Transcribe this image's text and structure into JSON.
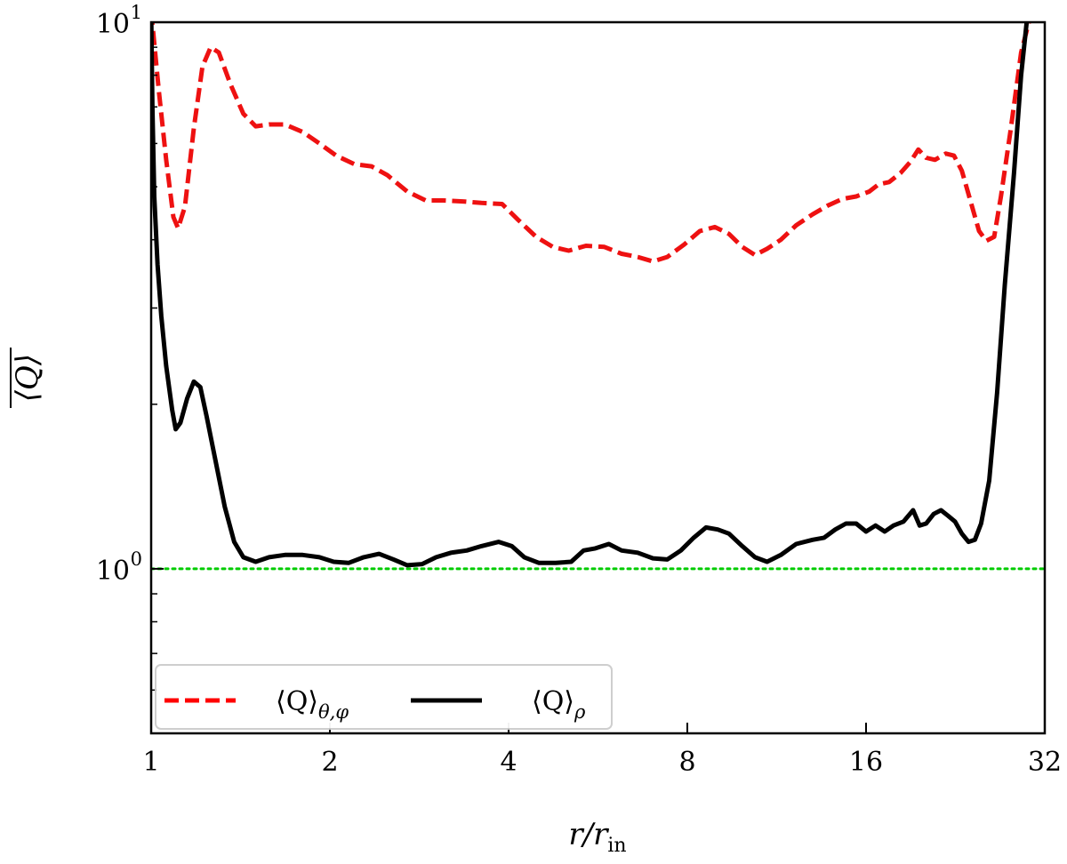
{
  "chart_data": {
    "type": "line",
    "xlabel": "r/r_in",
    "ylabel": "⟨Q⟩ (time-averaged)",
    "xscale": "log2",
    "yscale": "log10",
    "xlim": [
      1,
      32
    ],
    "ylim": [
      0.5,
      10
    ],
    "x_ticks": [
      1,
      2,
      4,
      8,
      16,
      32
    ],
    "x_tick_labels": [
      "1",
      "2",
      "4",
      "8",
      "16",
      "32"
    ],
    "y_ticks": [
      1,
      10
    ],
    "y_tick_labels": [
      {
        "base": "10",
        "exp": "0"
      },
      {
        "base": "10",
        "exp": "1"
      }
    ],
    "y_minor_ticks": [
      0.5,
      0.6,
      0.7,
      0.8,
      0.9,
      2,
      3,
      4,
      5,
      6,
      7,
      8,
      9
    ],
    "legend": {
      "placement": "bottom-left",
      "entries": [
        {
          "label_main": "⟨Q⟩",
          "label_sub": "θ,φ",
          "style": "dashed",
          "color": "#ff0000"
        },
        {
          "label_main": "⟨Q⟩",
          "label_sub": "ρ",
          "style": "solid",
          "color": "#000000"
        }
      ]
    },
    "reference_line": {
      "y": 1.0,
      "color": "#00cc00",
      "style": "dotted"
    },
    "series": [
      {
        "color": "#ee1111",
        "style": "dashed",
        "points": [
          [
            1.0,
            10.5
          ],
          [
            1.03,
            7.5
          ],
          [
            1.06,
            5.6
          ],
          [
            1.09,
            4.4
          ],
          [
            1.11,
            4.2
          ],
          [
            1.14,
            4.6
          ],
          [
            1.18,
            6.4
          ],
          [
            1.22,
            8.3
          ],
          [
            1.26,
            9.0
          ],
          [
            1.3,
            8.8
          ],
          [
            1.36,
            7.7
          ],
          [
            1.43,
            6.8
          ],
          [
            1.5,
            6.45
          ],
          [
            1.58,
            6.5
          ],
          [
            1.68,
            6.5
          ],
          [
            1.8,
            6.3
          ],
          [
            1.92,
            6.0
          ],
          [
            2.05,
            5.7
          ],
          [
            2.2,
            5.5
          ],
          [
            2.35,
            5.45
          ],
          [
            2.5,
            5.25
          ],
          [
            2.7,
            4.9
          ],
          [
            2.9,
            4.72
          ],
          [
            3.1,
            4.72
          ],
          [
            3.35,
            4.7
          ],
          [
            3.6,
            4.67
          ],
          [
            3.9,
            4.65
          ],
          [
            4.15,
            4.35
          ],
          [
            4.45,
            4.05
          ],
          [
            4.75,
            3.88
          ],
          [
            5.05,
            3.82
          ],
          [
            5.4,
            3.9
          ],
          [
            5.8,
            3.88
          ],
          [
            6.2,
            3.77
          ],
          [
            6.6,
            3.72
          ],
          [
            7.0,
            3.65
          ],
          [
            7.4,
            3.72
          ],
          [
            7.9,
            3.92
          ],
          [
            8.4,
            4.15
          ],
          [
            8.9,
            4.22
          ],
          [
            9.4,
            4.1
          ],
          [
            9.9,
            3.88
          ],
          [
            10.4,
            3.75
          ],
          [
            10.9,
            3.85
          ],
          [
            11.5,
            4.0
          ],
          [
            12.2,
            4.25
          ],
          [
            13.0,
            4.45
          ],
          [
            13.8,
            4.62
          ],
          [
            14.6,
            4.75
          ],
          [
            15.4,
            4.8
          ],
          [
            16.2,
            4.9
          ],
          [
            16.8,
            5.05
          ],
          [
            17.5,
            5.1
          ],
          [
            18.3,
            5.3
          ],
          [
            19.0,
            5.55
          ],
          [
            19.6,
            5.85
          ],
          [
            20.2,
            5.65
          ],
          [
            20.9,
            5.6
          ],
          [
            21.8,
            5.75
          ],
          [
            22.5,
            5.7
          ],
          [
            23.2,
            5.35
          ],
          [
            24.0,
            4.7
          ],
          [
            24.8,
            4.15
          ],
          [
            25.5,
            3.98
          ],
          [
            26.3,
            4.05
          ],
          [
            27.0,
            4.8
          ],
          [
            28.0,
            6.3
          ],
          [
            29.2,
            8.8
          ],
          [
            30.5,
            10.6
          ]
        ]
      },
      {
        "color": "#000000",
        "style": "solid",
        "points": [
          [
            1.0,
            10.5
          ],
          [
            1.005,
            7.0
          ],
          [
            1.012,
            4.8
          ],
          [
            1.025,
            3.6
          ],
          [
            1.04,
            2.9
          ],
          [
            1.06,
            2.35
          ],
          [
            1.085,
            1.95
          ],
          [
            1.1,
            1.8
          ],
          [
            1.12,
            1.85
          ],
          [
            1.15,
            2.05
          ],
          [
            1.18,
            2.2
          ],
          [
            1.21,
            2.15
          ],
          [
            1.24,
            1.9
          ],
          [
            1.28,
            1.6
          ],
          [
            1.33,
            1.3
          ],
          [
            1.38,
            1.12
          ],
          [
            1.43,
            1.05
          ],
          [
            1.5,
            1.03
          ],
          [
            1.58,
            1.05
          ],
          [
            1.68,
            1.06
          ],
          [
            1.8,
            1.06
          ],
          [
            1.92,
            1.05
          ],
          [
            2.03,
            1.03
          ],
          [
            2.15,
            1.025
          ],
          [
            2.28,
            1.05
          ],
          [
            2.42,
            1.065
          ],
          [
            2.56,
            1.04
          ],
          [
            2.7,
            1.015
          ],
          [
            2.86,
            1.02
          ],
          [
            3.02,
            1.05
          ],
          [
            3.2,
            1.07
          ],
          [
            3.4,
            1.08
          ],
          [
            3.6,
            1.1
          ],
          [
            3.85,
            1.12
          ],
          [
            4.05,
            1.1
          ],
          [
            4.25,
            1.05
          ],
          [
            4.5,
            1.025
          ],
          [
            4.8,
            1.025
          ],
          [
            5.1,
            1.03
          ],
          [
            5.35,
            1.08
          ],
          [
            5.6,
            1.09
          ],
          [
            5.9,
            1.11
          ],
          [
            6.2,
            1.08
          ],
          [
            6.6,
            1.07
          ],
          [
            7.0,
            1.045
          ],
          [
            7.4,
            1.04
          ],
          [
            7.8,
            1.08
          ],
          [
            8.2,
            1.14
          ],
          [
            8.6,
            1.19
          ],
          [
            9.0,
            1.18
          ],
          [
            9.4,
            1.16
          ],
          [
            9.9,
            1.1
          ],
          [
            10.4,
            1.05
          ],
          [
            10.9,
            1.03
          ],
          [
            11.5,
            1.06
          ],
          [
            12.2,
            1.11
          ],
          [
            13.0,
            1.13
          ],
          [
            13.6,
            1.14
          ],
          [
            14.2,
            1.18
          ],
          [
            14.8,
            1.21
          ],
          [
            15.4,
            1.21
          ],
          [
            16.0,
            1.17
          ],
          [
            16.6,
            1.2
          ],
          [
            17.2,
            1.17
          ],
          [
            17.8,
            1.2
          ],
          [
            18.5,
            1.22
          ],
          [
            19.2,
            1.28
          ],
          [
            19.7,
            1.2
          ],
          [
            20.2,
            1.21
          ],
          [
            20.8,
            1.26
          ],
          [
            21.4,
            1.28
          ],
          [
            22.0,
            1.25
          ],
          [
            22.6,
            1.22
          ],
          [
            23.2,
            1.16
          ],
          [
            23.8,
            1.12
          ],
          [
            24.4,
            1.13
          ],
          [
            25.0,
            1.21
          ],
          [
            25.8,
            1.45
          ],
          [
            26.6,
            2.1
          ],
          [
            27.4,
            3.3
          ],
          [
            28.4,
            5.3
          ],
          [
            29.2,
            8.0
          ],
          [
            30.0,
            10.6
          ]
        ]
      }
    ]
  }
}
